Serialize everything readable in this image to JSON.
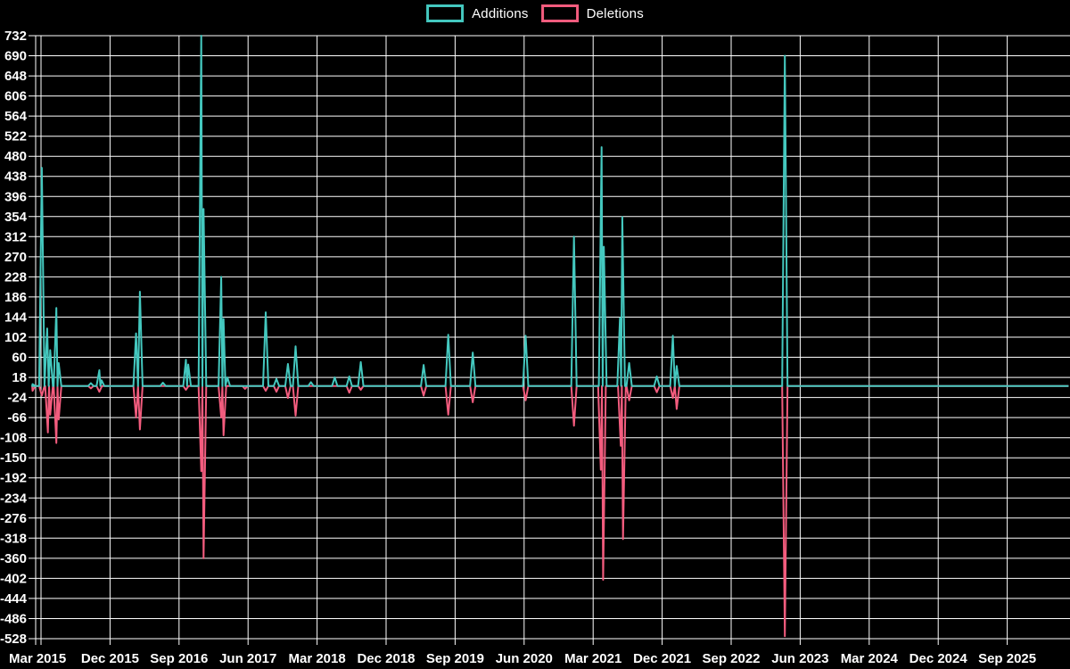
{
  "legend": {
    "additions_label": "Additions",
    "deletions_label": "Deletions"
  },
  "colors": {
    "background": "#000000",
    "grid": "#ffffff",
    "text": "#ffffff",
    "additions": "#44c8bf",
    "deletions": "#f35c7e"
  },
  "chart_data": {
    "type": "line",
    "title": "",
    "xlabel": "",
    "ylabel": "",
    "legend_position": "top-center",
    "grid": true,
    "ylim": [
      -528,
      732
    ],
    "ytick_step": 42,
    "y_tick_labels": [
      732,
      690,
      648,
      606,
      564,
      522,
      480,
      438,
      396,
      354,
      312,
      270,
      228,
      186,
      144,
      102,
      60,
      18,
      -24,
      -66,
      -108,
      -150,
      -192,
      -234,
      -276,
      -318,
      -360,
      -402,
      -444,
      -486,
      -528
    ],
    "x_tick_labels": [
      "Mar 2015",
      "Dec 2015",
      "Sep 2016",
      "Jun 2017",
      "Mar 2018",
      "Dec 2018",
      "Sep 2019",
      "Jun 2020",
      "Mar 2021",
      "Dec 2021",
      "Sep 2022",
      "Jun 2023",
      "Mar 2024",
      "Dec 2024",
      "Sep 2025"
    ],
    "x_tick_months": [
      0,
      9,
      18,
      27,
      36,
      45,
      54,
      63,
      72,
      81,
      90,
      99,
      108,
      117,
      126
    ],
    "x_domain_months": [
      -0.8,
      134
    ],
    "baseline": 0,
    "series": [
      {
        "name": "Additions",
        "color_key": "additions",
        "points": [
          [
            -1.1,
            4
          ],
          [
            0.1,
            456
          ],
          [
            0.8,
            120
          ],
          [
            1.2,
            75
          ],
          [
            2.0,
            163
          ],
          [
            2.3,
            48
          ],
          [
            6.5,
            6
          ],
          [
            7.6,
            33
          ],
          [
            7.9,
            12
          ],
          [
            12.4,
            110
          ],
          [
            12.9,
            197
          ],
          [
            15.9,
            7
          ],
          [
            18.9,
            55
          ],
          [
            19.2,
            45
          ],
          [
            20.9,
            732
          ],
          [
            21.2,
            370
          ],
          [
            23.5,
            228
          ],
          [
            23.8,
            140
          ],
          [
            24.3,
            18
          ],
          [
            29.3,
            154
          ],
          [
            30.7,
            15
          ],
          [
            32.2,
            46
          ],
          [
            33.2,
            83
          ],
          [
            35.2,
            8
          ],
          [
            38.3,
            18
          ],
          [
            40.2,
            20
          ],
          [
            41.7,
            50
          ],
          [
            49.9,
            44
          ],
          [
            53.1,
            107
          ],
          [
            56.3,
            70
          ],
          [
            63.2,
            105
          ],
          [
            69.5,
            312
          ],
          [
            73.1,
            499
          ],
          [
            73.4,
            291
          ],
          [
            75.5,
            142
          ],
          [
            75.8,
            353
          ],
          [
            76.7,
            48
          ],
          [
            80.3,
            20
          ],
          [
            82.4,
            105
          ],
          [
            82.9,
            42
          ],
          [
            97.0,
            690
          ]
        ]
      },
      {
        "name": "Deletions",
        "color_key": "deletions",
        "points": [
          [
            -1.1,
            -10
          ],
          [
            0.1,
            -20
          ],
          [
            0.9,
            -97
          ],
          [
            1.2,
            -60
          ],
          [
            2.0,
            -119
          ],
          [
            2.3,
            -70
          ],
          [
            6.5,
            -5
          ],
          [
            7.6,
            -12
          ],
          [
            12.4,
            -66
          ],
          [
            12.9,
            -91
          ],
          [
            18.9,
            -8
          ],
          [
            20.9,
            -178
          ],
          [
            21.2,
            -360
          ],
          [
            23.5,
            -66
          ],
          [
            23.8,
            -103
          ],
          [
            26.6,
            -6
          ],
          [
            29.3,
            -10
          ],
          [
            30.7,
            -12
          ],
          [
            32.2,
            -25
          ],
          [
            33.2,
            -62
          ],
          [
            40.2,
            -14
          ],
          [
            41.7,
            -8
          ],
          [
            49.9,
            -20
          ],
          [
            53.1,
            -60
          ],
          [
            56.3,
            -34
          ],
          [
            63.2,
            -30
          ],
          [
            69.5,
            -83
          ],
          [
            73.0,
            -175
          ],
          [
            73.3,
            -405
          ],
          [
            75.6,
            -125
          ],
          [
            75.9,
            -320
          ],
          [
            76.7,
            -30
          ],
          [
            80.3,
            -13
          ],
          [
            82.4,
            -25
          ],
          [
            82.9,
            -48
          ],
          [
            97.0,
            -523
          ]
        ]
      }
    ]
  }
}
